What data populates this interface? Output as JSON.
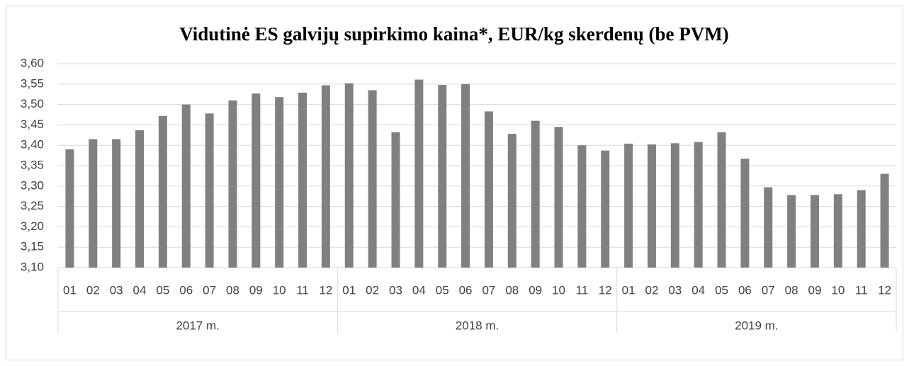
{
  "chart_data": {
    "type": "bar",
    "title": "Vidutinė ES galvijų supirkimo kaina*, EUR/kg skerdenų (be PVM)",
    "categories": [
      "01",
      "02",
      "03",
      "04",
      "05",
      "06",
      "07",
      "08",
      "09",
      "10",
      "11",
      "12",
      "01",
      "02",
      "03",
      "04",
      "05",
      "06",
      "07",
      "08",
      "09",
      "10",
      "11",
      "12",
      "01",
      "02",
      "03",
      "04",
      "05",
      "06",
      "07",
      "08",
      "09",
      "10",
      "11",
      "12"
    ],
    "groups": [
      "2017 m.",
      "2018 m.",
      "2019 m."
    ],
    "values": [
      3.39,
      3.415,
      3.415,
      3.437,
      3.472,
      3.5,
      3.478,
      3.51,
      3.527,
      3.518,
      3.529,
      3.547,
      3.552,
      3.535,
      3.432,
      3.561,
      3.548,
      3.55,
      3.483,
      3.428,
      3.46,
      3.445,
      3.4,
      3.387,
      3.404,
      3.402,
      3.405,
      3.408,
      3.432,
      3.367,
      3.297,
      3.278,
      3.278,
      3.28,
      3.29,
      3.33
    ],
    "color": "#808080",
    "ylim": [
      3.1,
      3.6
    ],
    "yticks": [
      {
        "value": 3.1,
        "label": "3,10"
      },
      {
        "value": 3.15,
        "label": "3,15"
      },
      {
        "value": 3.2,
        "label": "3,20"
      },
      {
        "value": 3.25,
        "label": "3,25"
      },
      {
        "value": 3.3,
        "label": "3,30"
      },
      {
        "value": 3.35,
        "label": "3,35"
      },
      {
        "value": 3.4,
        "label": "3,40"
      },
      {
        "value": 3.45,
        "label": "3,45"
      },
      {
        "value": 3.5,
        "label": "3,50"
      },
      {
        "value": 3.55,
        "label": "3,55"
      },
      {
        "value": 3.6,
        "label": "3,60"
      }
    ],
    "grid": true
  }
}
